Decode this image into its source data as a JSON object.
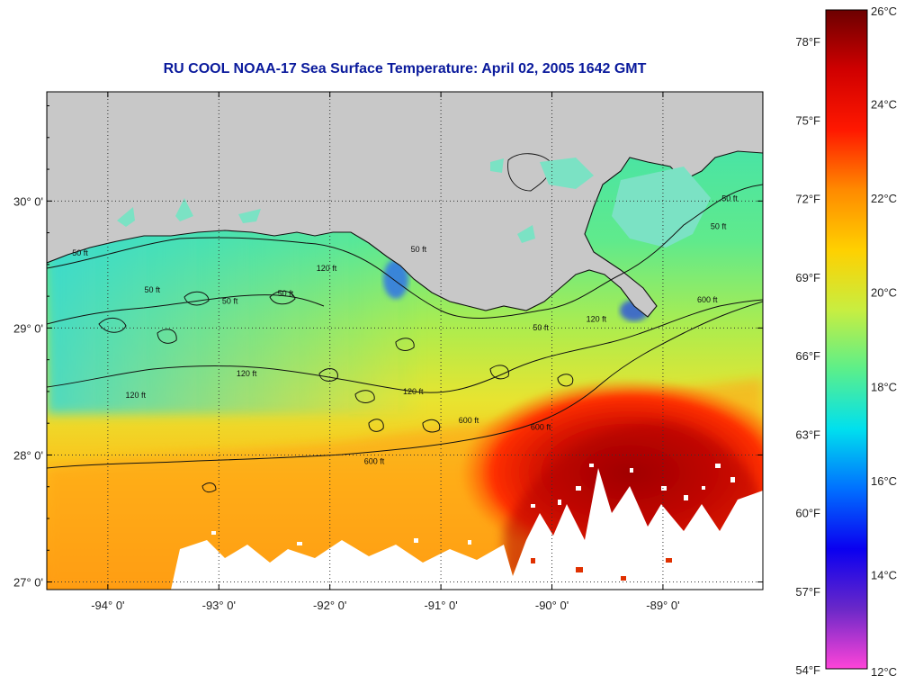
{
  "title": "RU COOL  NOAA-17  Sea Surface Temperature:  April 02, 2005 1642 GMT",
  "map": {
    "lon_ticks": [
      {
        "value": -94,
        "label": "-94° 0'"
      },
      {
        "value": -93,
        "label": "-93° 0'"
      },
      {
        "value": -92,
        "label": "-92° 0'"
      },
      {
        "value": -91,
        "label": "-91° 0'"
      },
      {
        "value": -90,
        "label": "-90° 0'"
      },
      {
        "value": -89,
        "label": "-89° 0'"
      }
    ],
    "lat_ticks": [
      {
        "value": 30,
        "label": "30° 0'"
      },
      {
        "value": 29,
        "label": "29° 0'"
      },
      {
        "value": 28,
        "label": "28° 0'"
      },
      {
        "value": 27,
        "label": "27° 0'"
      }
    ],
    "lon_range": [
      -94.55,
      -88.1
    ],
    "lat_range": [
      26.94,
      30.86
    ],
    "grid": "dotted",
    "contour_labels": [
      {
        "text": "50 ft",
        "lon": -94.25,
        "lat": 29.57
      },
      {
        "text": "50 ft",
        "lon": -93.6,
        "lat": 29.28
      },
      {
        "text": "50 ft",
        "lon": -92.9,
        "lat": 29.19
      },
      {
        "text": "50 ft",
        "lon": -92.4,
        "lat": 29.25
      },
      {
        "text": "50 ft",
        "lon": -91.2,
        "lat": 29.6
      },
      {
        "text": "50 ft",
        "lon": -90.1,
        "lat": 28.98
      },
      {
        "text": "50 ft",
        "lon": -88.4,
        "lat": 30.0
      },
      {
        "text": "50 ft",
        "lon": -88.5,
        "lat": 29.78
      },
      {
        "text": "120 ft",
        "lon": -92.03,
        "lat": 29.45
      },
      {
        "text": "120 ft",
        "lon": -92.75,
        "lat": 28.62
      },
      {
        "text": "120 ft",
        "lon": -93.75,
        "lat": 28.45
      },
      {
        "text": "120 ft",
        "lon": -91.25,
        "lat": 28.48
      },
      {
        "text": "120 ft",
        "lon": -89.6,
        "lat": 29.05
      },
      {
        "text": "600 ft",
        "lon": -91.6,
        "lat": 27.93
      },
      {
        "text": "600 ft",
        "lon": -90.75,
        "lat": 28.25
      },
      {
        "text": "600 ft",
        "lon": -90.1,
        "lat": 28.2
      },
      {
        "text": "600 ft",
        "lon": -88.6,
        "lat": 29.2
      }
    ]
  },
  "colorbar": {
    "celsius_labels": [
      "26°C",
      "24°C",
      "22°C",
      "20°C",
      "18°C",
      "16°C",
      "14°C",
      "12°C"
    ],
    "fahrenheit_labels": [
      "78°F",
      "75°F",
      "72°F",
      "69°F",
      "66°F",
      "63°F",
      "60°F",
      "57°F",
      "54°F"
    ],
    "colors": [
      "#ff44d8",
      "#6a28c8",
      "#0a00f0",
      "#0070ff",
      "#00e0ee",
      "#5cef8a",
      "#c8ee40",
      "#ffd000",
      "#ff8a00",
      "#ff1800",
      "#d00000",
      "#6c0000"
    ]
  },
  "colors": {
    "land": "#c8c8c8",
    "no_data": "#ffffff",
    "title": "#0a1a9c"
  }
}
